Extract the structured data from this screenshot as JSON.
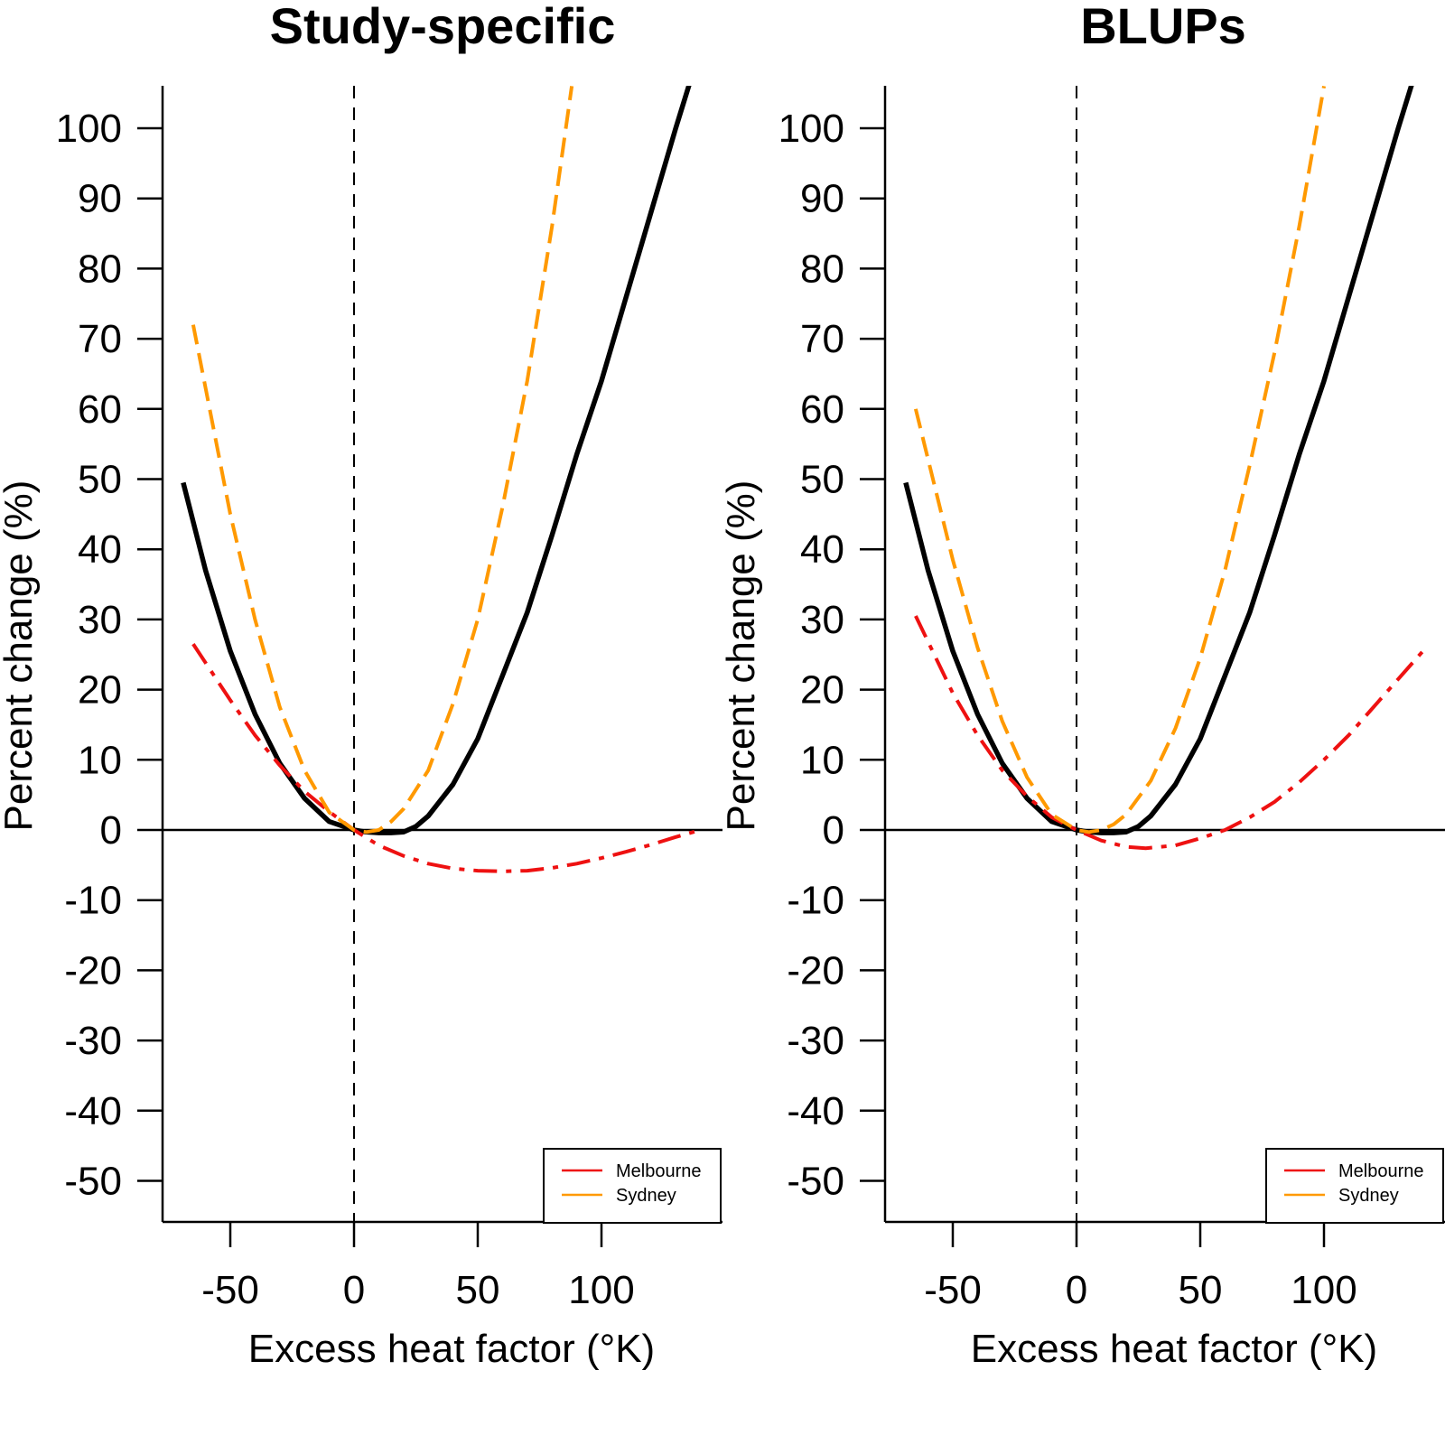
{
  "chart_data": [
    {
      "type": "line",
      "title": "Study-specific",
      "xlabel": "Excess heat factor (°K)",
      "ylabel": "Percent change (%)",
      "xlim": [
        -75,
        150
      ],
      "ylim": [
        -55,
        105
      ],
      "x_ticks": [
        -50,
        0,
        50,
        100
      ],
      "y_ticks": [
        -50,
        -40,
        -30,
        -20,
        -10,
        0,
        10,
        20,
        30,
        40,
        50,
        60,
        70,
        80,
        90,
        100
      ],
      "reference_lines": {
        "vertical_dashed_x": 0,
        "horizontal_solid_y": 0
      },
      "legend": {
        "position": "bottom-right",
        "entries": [
          "Melbourne",
          "Sydney"
        ]
      },
      "grid": false,
      "series": [
        {
          "color": "#000000",
          "style": "solid",
          "x": [
            -69,
            -60,
            -50,
            -40,
            -30,
            -20,
            -10,
            0,
            5,
            10,
            15,
            20,
            25,
            30,
            40,
            50,
            60,
            70,
            80,
            90,
            100,
            110,
            120,
            130,
            137
          ],
          "y": [
            49.5,
            37,
            25.5,
            16.5,
            9.5,
            4.5,
            1.2,
            0,
            -0.3,
            -0.4,
            -0.4,
            -0.3,
            0.5,
            2,
            6.5,
            13,
            22,
            31,
            42,
            53.5,
            64,
            76,
            88,
            100,
            108
          ]
        },
        {
          "name": "Melbourne",
          "color": "#ee1111",
          "style": "dashdot",
          "x": [
            -65,
            -50,
            -40,
            -30,
            -20,
            -10,
            0,
            10,
            20,
            30,
            40,
            50,
            60,
            70,
            80,
            90,
            100,
            110,
            120,
            130,
            140
          ],
          "y": [
            26.5,
            18.5,
            13.5,
            9.2,
            5.5,
            2.6,
            0,
            -2.2,
            -3.7,
            -4.8,
            -5.5,
            -5.8,
            -5.9,
            -5.8,
            -5.4,
            -4.8,
            -4,
            -3.1,
            -2.1,
            -1,
            0
          ]
        },
        {
          "name": "Sydney",
          "color": "#ff9900",
          "style": "dashed",
          "x": [
            -65,
            -50,
            -40,
            -30,
            -20,
            -10,
            0,
            5,
            10,
            15,
            20,
            30,
            40,
            50,
            60,
            70,
            80,
            88
          ],
          "y": [
            72,
            45,
            30,
            17.5,
            8.5,
            2.5,
            0,
            -0.3,
            0,
            1.2,
            3,
            8.5,
            18,
            30,
            46,
            64,
            86,
            106
          ]
        }
      ]
    },
    {
      "type": "line",
      "title": "BLUPs",
      "xlabel": "Excess heat factor (°K)",
      "ylabel": "Percent change (%)",
      "xlim": [
        -75,
        150
      ],
      "ylim": [
        -55,
        105
      ],
      "x_ticks": [
        -50,
        0,
        50,
        100
      ],
      "y_ticks": [
        -50,
        -40,
        -30,
        -20,
        -10,
        0,
        10,
        20,
        30,
        40,
        50,
        60,
        70,
        80,
        90,
        100
      ],
      "reference_lines": {
        "vertical_dashed_x": 0,
        "horizontal_solid_y": 0
      },
      "legend": {
        "position": "bottom-right",
        "entries": [
          "Melbourne",
          "Sydney"
        ]
      },
      "grid": false,
      "series": [
        {
          "color": "#000000",
          "style": "solid",
          "x": [
            -69,
            -60,
            -50,
            -40,
            -30,
            -20,
            -10,
            0,
            5,
            10,
            15,
            20,
            25,
            30,
            40,
            50,
            60,
            70,
            80,
            90,
            100,
            110,
            120,
            130,
            137
          ],
          "y": [
            49.5,
            37,
            25.5,
            16.5,
            9.5,
            4.5,
            1.2,
            0,
            -0.3,
            -0.4,
            -0.4,
            -0.3,
            0.5,
            2,
            6.5,
            13,
            22,
            31,
            42,
            53.5,
            64,
            76,
            88,
            100,
            108
          ]
        },
        {
          "name": "Melbourne",
          "color": "#ee1111",
          "style": "dashdot",
          "x": [
            -65,
            -50,
            -40,
            -30,
            -20,
            -10,
            0,
            10,
            20,
            28,
            40,
            50,
            60,
            70,
            80,
            90,
            100,
            110,
            120,
            130,
            140
          ],
          "y": [
            30.5,
            19.5,
            13.5,
            8.5,
            4.8,
            1.8,
            0,
            -1.5,
            -2.4,
            -2.6,
            -2.2,
            -1.2,
            0,
            1.8,
            4,
            6.8,
            10,
            13.5,
            17.5,
            21.5,
            25.5
          ]
        },
        {
          "name": "Sydney",
          "color": "#ff9900",
          "style": "dashed",
          "x": [
            -65,
            -50,
            -40,
            -30,
            -20,
            -10,
            0,
            5,
            10,
            15,
            20,
            30,
            40,
            50,
            60,
            70,
            80,
            90,
            100
          ],
          "y": [
            60,
            38.5,
            26,
            15.5,
            7.5,
            2.2,
            0,
            -0.3,
            0,
            0.8,
            2.2,
            7,
            14.5,
            24.5,
            37,
            52,
            68,
            86,
            106
          ]
        }
      ]
    }
  ]
}
